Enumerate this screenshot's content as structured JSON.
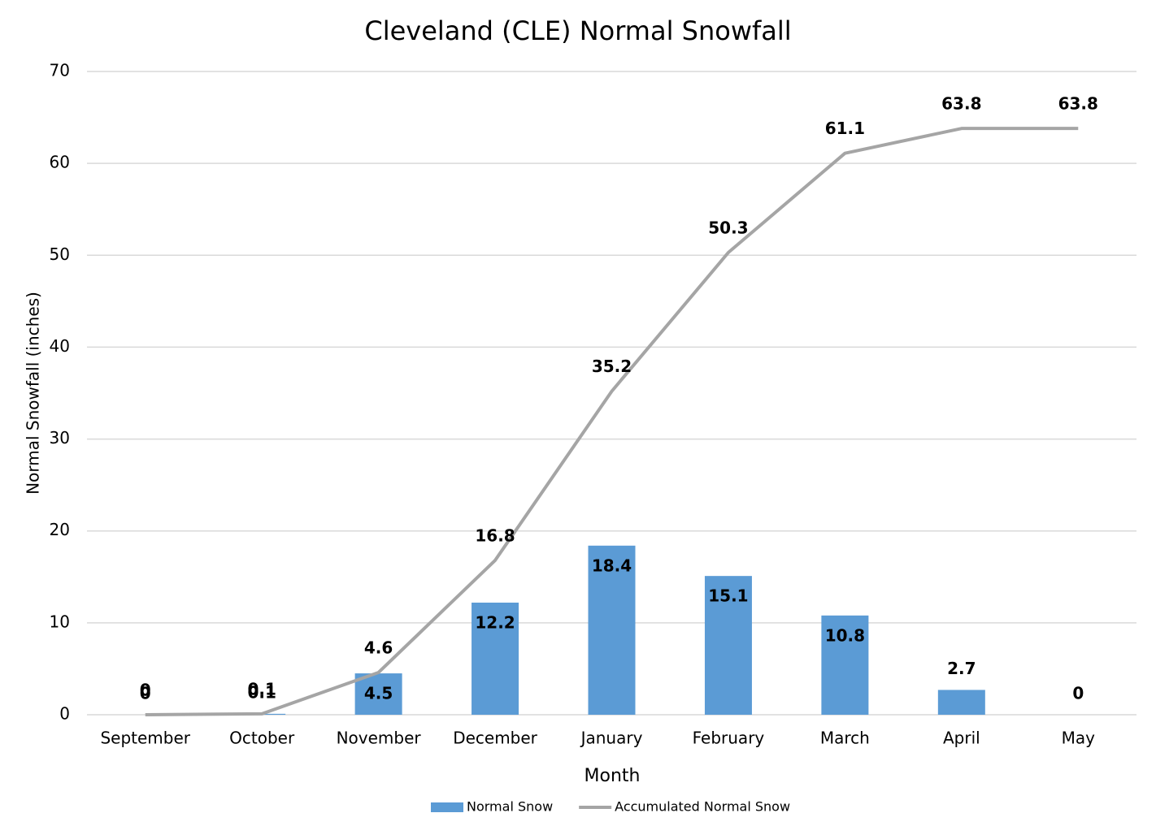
{
  "chart_data": {
    "type": "combo",
    "title": "Cleveland (CLE) Normal Snowfall",
    "x_label": "Month",
    "y_label": "Normal Snowfall (inches)",
    "categories": [
      "September",
      "October",
      "November",
      "December",
      "January",
      "February",
      "March",
      "April",
      "May"
    ],
    "series": [
      {
        "name": "Normal Snow",
        "type": "bar",
        "color": "#5b9bd5",
        "values": [
          0,
          0.1,
          4.5,
          12.2,
          18.4,
          15.1,
          10.8,
          2.7,
          0
        ]
      },
      {
        "name": "Accumulated Normal Snow",
        "type": "line",
        "color": "#a5a5a5",
        "values": [
          0,
          0.1,
          4.6,
          16.8,
          35.2,
          50.3,
          61.1,
          63.8,
          63.8
        ]
      }
    ],
    "ylim": [
      0,
      70
    ],
    "yticks": [
      0,
      10,
      20,
      30,
      40,
      50,
      60,
      70
    ],
    "grid": true,
    "legend": "bottom"
  }
}
